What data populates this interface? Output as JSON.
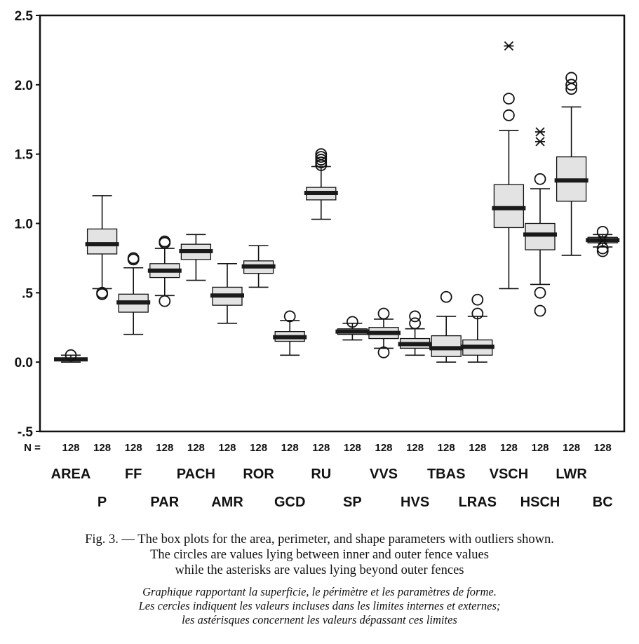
{
  "chart_data": {
    "type": "boxplot",
    "ylim": [
      -0.5,
      2.5
    ],
    "yticks": [
      {
        "value": 2.5,
        "label": "2.5"
      },
      {
        "value": 2.0,
        "label": "2.0"
      },
      {
        "value": 1.5,
        "label": "1.5"
      },
      {
        "value": 1.0,
        "label": "1.0"
      },
      {
        "value": 0.5,
        "label": ".5"
      },
      {
        "value": 0.0,
        "label": "0.0"
      },
      {
        "value": -0.5,
        "label": "-.5"
      }
    ],
    "n_prefix": "N =",
    "boxes": [
      {
        "label": "AREA",
        "n": "128",
        "wlow": 0.0,
        "q1": 0.01,
        "median": 0.02,
        "q3": 0.03,
        "whigh": 0.05,
        "circles": [
          0.05
        ],
        "stars": []
      },
      {
        "label": "P",
        "n": "128",
        "wlow": 0.53,
        "q1": 0.78,
        "median": 0.85,
        "q3": 0.96,
        "whigh": 1.2,
        "circles": [
          0.49,
          0.5
        ],
        "stars": []
      },
      {
        "label": "FF",
        "n": "128",
        "wlow": 0.2,
        "q1": 0.36,
        "median": 0.43,
        "q3": 0.49,
        "whigh": 0.68,
        "circles": [
          0.74,
          0.75
        ],
        "stars": []
      },
      {
        "label": "PAR",
        "n": "128",
        "wlow": 0.48,
        "q1": 0.61,
        "median": 0.66,
        "q3": 0.71,
        "whigh": 0.82,
        "circles": [
          0.44,
          0.86,
          0.87
        ],
        "stars": []
      },
      {
        "label": "PACH",
        "n": "128",
        "wlow": 0.59,
        "q1": 0.74,
        "median": 0.8,
        "q3": 0.85,
        "whigh": 0.92,
        "circles": [],
        "stars": []
      },
      {
        "label": "AMR",
        "n": "128",
        "wlow": 0.28,
        "q1": 0.41,
        "median": 0.48,
        "q3": 0.54,
        "whigh": 0.71,
        "circles": [],
        "stars": []
      },
      {
        "label": "ROR",
        "n": "128",
        "wlow": 0.54,
        "q1": 0.64,
        "median": 0.69,
        "q3": 0.73,
        "whigh": 0.84,
        "circles": [],
        "stars": []
      },
      {
        "label": "GCD",
        "n": "128",
        "wlow": 0.05,
        "q1": 0.15,
        "median": 0.18,
        "q3": 0.22,
        "whigh": 0.3,
        "circles": [
          0.33
        ],
        "stars": []
      },
      {
        "label": "RU",
        "n": "128",
        "wlow": 1.03,
        "q1": 1.17,
        "median": 1.22,
        "q3": 1.26,
        "whigh": 1.41,
        "circles": [
          1.42,
          1.44,
          1.46,
          1.48,
          1.5
        ],
        "stars": []
      },
      {
        "label": "SP",
        "n": "128",
        "wlow": 0.16,
        "q1": 0.2,
        "median": 0.22,
        "q3": 0.24,
        "whigh": 0.28,
        "circles": [
          0.29
        ],
        "stars": []
      },
      {
        "label": "VVS",
        "n": "128",
        "wlow": 0.1,
        "q1": 0.17,
        "median": 0.21,
        "q3": 0.25,
        "whigh": 0.31,
        "circles": [
          0.07,
          0.35
        ],
        "stars": []
      },
      {
        "label": "HVS",
        "n": "128",
        "wlow": 0.05,
        "q1": 0.1,
        "median": 0.13,
        "q3": 0.17,
        "whigh": 0.24,
        "circles": [
          0.28,
          0.33
        ],
        "stars": []
      },
      {
        "label": "TBAS",
        "n": "128",
        "wlow": 0.0,
        "q1": 0.04,
        "median": 0.1,
        "q3": 0.19,
        "whigh": 0.33,
        "circles": [
          0.47
        ],
        "stars": []
      },
      {
        "label": "LRAS",
        "n": "128",
        "wlow": 0.0,
        "q1": 0.05,
        "median": 0.11,
        "q3": 0.16,
        "whigh": 0.33,
        "circles": [
          0.35,
          0.45
        ],
        "stars": []
      },
      {
        "label": "VSCH",
        "n": "128",
        "wlow": 0.53,
        "q1": 0.97,
        "median": 1.11,
        "q3": 1.28,
        "whigh": 1.67,
        "circles": [
          1.78,
          1.9
        ],
        "stars": [
          2.28
        ]
      },
      {
        "label": "HSCH",
        "n": "128",
        "wlow": 0.56,
        "q1": 0.81,
        "median": 0.92,
        "q3": 1.0,
        "whigh": 1.25,
        "circles": [
          0.37,
          0.5,
          1.32
        ],
        "stars": [
          1.59,
          1.66
        ]
      },
      {
        "label": "LWR",
        "n": "128",
        "wlow": 0.77,
        "q1": 1.16,
        "median": 1.31,
        "q3": 1.48,
        "whigh": 1.84,
        "circles": [
          1.97,
          2.0,
          2.05
        ],
        "stars": []
      },
      {
        "label": "BC",
        "n": "128",
        "wlow": 0.83,
        "q1": 0.86,
        "median": 0.88,
        "q3": 0.9,
        "whigh": 0.92,
        "circles": [
          0.8,
          0.82,
          0.94
        ],
        "stars": [
          0.88
        ]
      }
    ]
  },
  "caption": {
    "english": [
      "Fig. 3. — The box plots for the area, perimeter, and shape parameters with outliers shown.",
      "The circles are values lying between inner and outer fence values",
      "while the asterisks are values lying beyond outer fences"
    ],
    "french": [
      "Graphique rapportant la superficie, le périmètre et les paramètres de forme.",
      "Les cercles indiquent les valeurs incluses dans les limites internes et externes;",
      "les astérisques concernent les valeurs dépassant ces limites"
    ]
  }
}
